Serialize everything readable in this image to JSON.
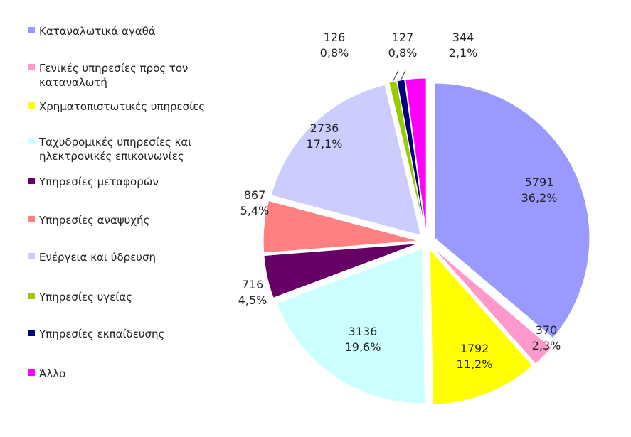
{
  "chart_data": {
    "type": "pie",
    "exploded": true,
    "legend_position": "left",
    "categories": [
      "Καταναλωτικά αγαθά",
      "Γενικές υπηρεσίες προς τον καταναλωτή",
      "Χρηματοπιστωτικές υπηρεσίες",
      "Ταχυδρομικές υπηρεσίες και ηλεκτρονικές επικοινωνίες",
      "Υπηρεσίες μεταφορών",
      "Υπηρεσίες αναψυχής",
      "Ενέργεια και ύδρευση",
      "Υπηρεσίες υγείας",
      "Υπηρεσίες εκπαίδευσης",
      "Άλλο"
    ],
    "values": [
      5791,
      370,
      1792,
      3136,
      716,
      867,
      2736,
      126,
      127,
      344
    ],
    "value_labels": [
      "5791",
      "370",
      "1792",
      "3136",
      "716",
      "867",
      "2736",
      "126",
      "127",
      "344"
    ],
    "percent_labels": [
      "36,2%",
      "2,3%",
      "11,2%",
      "19,6%",
      "4,5%",
      "5,4%",
      "17,1%",
      "0,8%",
      "0,8%",
      "2,1%"
    ],
    "colors": [
      "#9999ff",
      "#ff99cc",
      "#ffff00",
      "#ccffff",
      "#660066",
      "#ff8080",
      "#ccccff",
      "#99cc00",
      "#000080",
      "#ff00ff"
    ],
    "order": "clockwise from top"
  }
}
